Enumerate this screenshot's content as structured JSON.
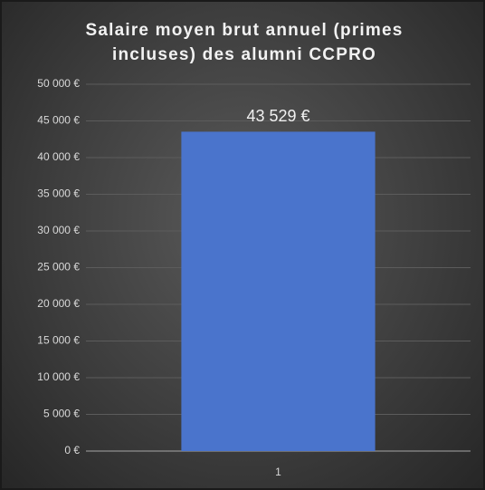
{
  "chart_data": {
    "type": "bar",
    "title": "Salaire moyen brut annuel (primes incluses) des alumni CCPRO",
    "categories": [
      "1"
    ],
    "values": [
      43529
    ],
    "value_labels": [
      "43 529 €"
    ],
    "color": "#4a74cc",
    "ylim": [
      0,
      50000
    ],
    "yticks": [
      {
        "value": 0,
        "label": "0 €"
      },
      {
        "value": 5000,
        "label": "5 000 €"
      },
      {
        "value": 10000,
        "label": "10 000 €"
      },
      {
        "value": 15000,
        "label": "15 000 €"
      },
      {
        "value": 20000,
        "label": "20 000 €"
      },
      {
        "value": 25000,
        "label": "25 000 €"
      },
      {
        "value": 30000,
        "label": "30 000 €"
      },
      {
        "value": 35000,
        "label": "35 000 €"
      },
      {
        "value": 40000,
        "label": "40 000 €"
      },
      {
        "value": 45000,
        "label": "45 000 €"
      },
      {
        "value": 50000,
        "label": "50 000 €"
      }
    ],
    "grid": true
  }
}
